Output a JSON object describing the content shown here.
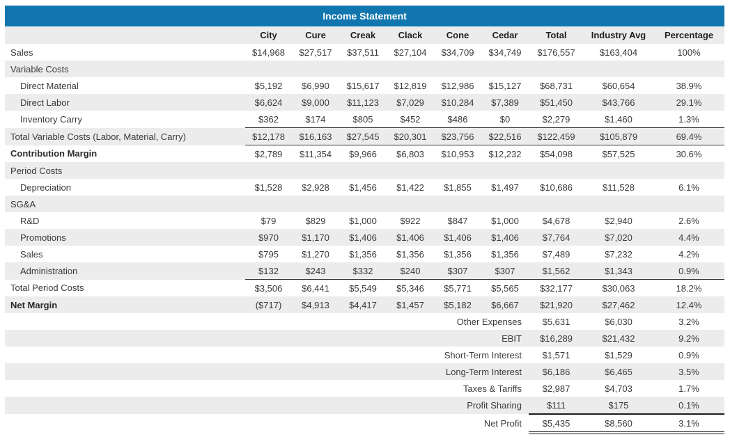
{
  "title": "Income Statement",
  "colors": {
    "title_bar": "#1176ae",
    "row_shade": "#ececec",
    "text": "#3a3a3a",
    "rule": "#2f2f2f"
  },
  "columns": [
    "",
    "City",
    "Cure",
    "Creak",
    "Clack",
    "Cone",
    "Cedar",
    "Total",
    "Industry Avg",
    "Percentage"
  ],
  "rows": [
    {
      "label": "Sales",
      "values": [
        "$14,968",
        "$27,517",
        "$37,511",
        "$27,104",
        "$34,709",
        "$34,749",
        "$176,557",
        "$163,404",
        "100%"
      ]
    },
    {
      "label": "Variable Costs",
      "section": true
    },
    {
      "label": "Direct Material",
      "indent": true,
      "values": [
        "$5,192",
        "$6,990",
        "$15,617",
        "$12,819",
        "$12,986",
        "$15,127",
        "$68,731",
        "$60,654",
        "38.9%"
      ]
    },
    {
      "label": "Direct Labor",
      "indent": true,
      "values": [
        "$6,624",
        "$9,000",
        "$11,123",
        "$7,029",
        "$10,284",
        "$7,389",
        "$51,450",
        "$43,766",
        "29.1%"
      ]
    },
    {
      "label": "Inventory Carry",
      "indent": true,
      "values": [
        "$362",
        "$174",
        "$805",
        "$452",
        "$486",
        "$0",
        "$2,279",
        "$1,460",
        "1.3%"
      ]
    },
    {
      "label": "Total Variable Costs (Labor, Material, Carry)",
      "rule": "both",
      "values": [
        "$12,178",
        "$16,163",
        "$27,545",
        "$20,301",
        "$23,756",
        "$22,516",
        "$122,459",
        "$105,879",
        "69.4%"
      ]
    },
    {
      "label": "Contribution Margin",
      "bold": true,
      "values": [
        "$2,789",
        "$11,354",
        "$9,966",
        "$6,803",
        "$10,953",
        "$12,232",
        "$54,098",
        "$57,525",
        "30.6%"
      ]
    },
    {
      "label": "Period Costs",
      "section": true
    },
    {
      "label": "Depreciation",
      "indent": true,
      "values": [
        "$1,528",
        "$2,928",
        "$1,456",
        "$1,422",
        "$1,855",
        "$1,497",
        "$10,686",
        "$11,528",
        "6.1%"
      ]
    },
    {
      "label": "SG&A",
      "section": true
    },
    {
      "label": "R&D",
      "indent": true,
      "values": [
        "$79",
        "$829",
        "$1,000",
        "$922",
        "$847",
        "$1,000",
        "$4,678",
        "$2,940",
        "2.6%"
      ]
    },
    {
      "label": "Promotions",
      "indent": true,
      "values": [
        "$970",
        "$1,170",
        "$1,406",
        "$1,406",
        "$1,406",
        "$1,406",
        "$7,764",
        "$7,020",
        "4.4%"
      ]
    },
    {
      "label": "Sales",
      "indent": true,
      "values": [
        "$795",
        "$1,270",
        "$1,356",
        "$1,356",
        "$1,356",
        "$1,356",
        "$7,489",
        "$7,232",
        "4.2%"
      ]
    },
    {
      "label": "Administration",
      "indent": true,
      "values": [
        "$132",
        "$243",
        "$332",
        "$240",
        "$307",
        "$307",
        "$1,562",
        "$1,343",
        "0.9%"
      ]
    },
    {
      "label": "Total Period Costs",
      "rule": "top",
      "values": [
        "$3,506",
        "$6,441",
        "$5,549",
        "$5,346",
        "$5,771",
        "$5,565",
        "$32,177",
        "$30,063",
        "18.2%"
      ]
    },
    {
      "label": "Net Margin",
      "bold": true,
      "values": [
        "($717)",
        "$4,913",
        "$4,417",
        "$1,457",
        "$5,182",
        "$6,667",
        "$21,920",
        "$27,462",
        "12.4%"
      ]
    },
    {
      "label": "Other Expenses",
      "summary": true,
      "values": [
        "$5,631",
        "$6,030",
        "3.2%"
      ]
    },
    {
      "label": "EBIT",
      "summary": true,
      "values": [
        "$16,289",
        "$21,432",
        "9.2%"
      ]
    },
    {
      "label": "Short-Term Interest",
      "summary": true,
      "values": [
        "$1,571",
        "$1,529",
        "0.9%"
      ]
    },
    {
      "label": "Long-Term Interest",
      "summary": true,
      "values": [
        "$6,186",
        "$6,465",
        "3.5%"
      ]
    },
    {
      "label": "Taxes & Tariffs",
      "summary": true,
      "values": [
        "$2,987",
        "$4,703",
        "1.7%"
      ]
    },
    {
      "label": "Profit Sharing",
      "summary": true,
      "values": [
        "$111",
        "$175",
        "0.1%"
      ]
    },
    {
      "label": "Net Profit",
      "summary": true,
      "rule": "netprofit",
      "values": [
        "$5,435",
        "$8,560",
        "3.1%"
      ]
    }
  ]
}
